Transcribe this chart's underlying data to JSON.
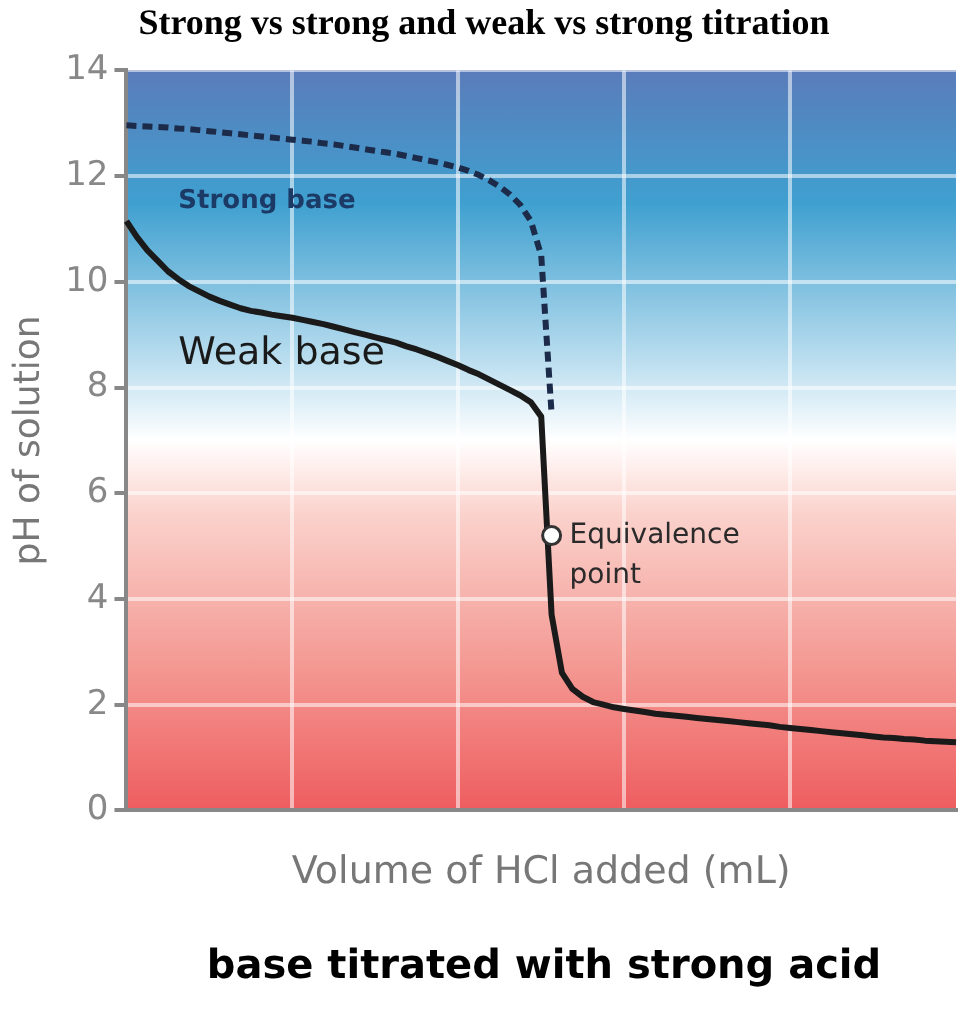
{
  "chart_data": {
    "type": "line",
    "title": "Strong vs strong and weak vs strong titration",
    "xlabel": "Volume of HCl added (mL)",
    "ylabel": "pH of solution",
    "categories": [
      null,
      null,
      null,
      null,
      null,
      null,
      null,
      null,
      null,
      null,
      null,
      null,
      null,
      null,
      null,
      null,
      null,
      null,
      null,
      null,
      null,
      null,
      null,
      null,
      null,
      null,
      null,
      null,
      null,
      null,
      null,
      null,
      null,
      null,
      null,
      null,
      null,
      null,
      null,
      null,
      null,
      null,
      null,
      null,
      null,
      null,
      null,
      null,
      null,
      null,
      null,
      null,
      null,
      null,
      null,
      null,
      null,
      null,
      null,
      null,
      null,
      null,
      null,
      null,
      null,
      null,
      null,
      null,
      null,
      null,
      null,
      null,
      null,
      null,
      null,
      null,
      null,
      null,
      null,
      null,
      null
    ],
    "series": [
      {
        "name": "Strong base",
        "color": "#1c2b4a",
        "line_style": "dashed",
        "values": [
          12.96,
          12.95,
          12.94,
          12.93,
          12.92,
          12.9,
          12.89,
          12.87,
          12.85,
          12.83,
          12.81,
          12.79,
          12.77,
          12.75,
          12.73,
          12.71,
          12.69,
          12.67,
          12.65,
          12.62,
          12.6,
          12.57,
          12.54,
          12.51,
          12.48,
          12.45,
          12.42,
          12.38,
          12.34,
          12.3,
          12.26,
          12.21,
          12.16,
          12.1,
          12.02,
          11.92,
          11.8,
          11.65,
          11.45,
          11.15,
          10.5,
          7.5,
          null,
          null,
          null,
          null,
          null,
          null,
          null,
          null,
          null,
          null,
          null,
          null,
          null,
          null,
          null,
          null,
          null,
          null,
          null,
          null,
          null,
          null,
          null,
          null,
          null,
          null,
          null,
          null,
          null,
          null,
          null,
          null,
          null,
          null,
          null,
          null,
          null,
          null,
          null
        ]
      },
      {
        "name": "Weak base",
        "color": "#1a1a1a",
        "line_style": "solid",
        "values": [
          11.15,
          10.85,
          10.6,
          10.4,
          10.2,
          10.05,
          9.92,
          9.82,
          9.72,
          9.64,
          9.57,
          9.5,
          9.45,
          9.42,
          9.38,
          9.35,
          9.32,
          9.28,
          9.24,
          9.2,
          9.15,
          9.1,
          9.05,
          9.0,
          8.95,
          8.9,
          8.85,
          8.78,
          8.72,
          8.65,
          8.58,
          8.5,
          8.42,
          8.33,
          8.25,
          8.15,
          8.05,
          7.95,
          7.85,
          7.72,
          7.45,
          3.7,
          2.6,
          2.3,
          2.15,
          2.05,
          2.0,
          1.95,
          1.92,
          1.89,
          1.86,
          1.83,
          1.81,
          1.79,
          1.77,
          1.75,
          1.73,
          1.71,
          1.69,
          1.67,
          1.65,
          1.63,
          1.61,
          1.58,
          1.56,
          1.54,
          1.52,
          1.5,
          1.48,
          1.46,
          1.44,
          1.42,
          1.4,
          1.38,
          1.37,
          1.35,
          1.34,
          1.32,
          1.31,
          1.3,
          1.29
        ]
      },
      {
        "type": "scatter",
        "color": "#ffffff",
        "marker": "circle",
        "values": [
          null,
          null,
          null,
          null,
          null,
          null,
          null,
          null,
          null,
          null,
          null,
          null,
          null,
          null,
          null,
          null,
          null,
          null,
          null,
          null,
          null,
          null,
          null,
          null,
          null,
          null,
          null,
          null,
          null,
          null,
          null,
          null,
          null,
          null,
          null,
          null,
          null,
          null,
          null,
          null,
          null,
          5.2,
          null,
          null,
          null,
          null,
          null,
          null,
          null,
          null,
          null,
          null,
          null,
          null,
          null,
          null,
          null,
          null,
          null,
          null,
          null,
          null,
          null,
          null,
          null,
          null,
          null,
          null,
          null,
          null,
          null,
          null,
          null,
          null,
          null,
          null,
          null,
          null,
          null,
          null,
          null
        ]
      }
    ],
    "ylim": [
      0,
      14
    ],
    "yticks": [
      0,
      2,
      4,
      6,
      8,
      10,
      12,
      14
    ],
    "grid": true,
    "tick_labels": "y",
    "legend": false,
    "annotations": [
      "Equivalence point",
      "base titrated with strong acid"
    ]
  }
}
